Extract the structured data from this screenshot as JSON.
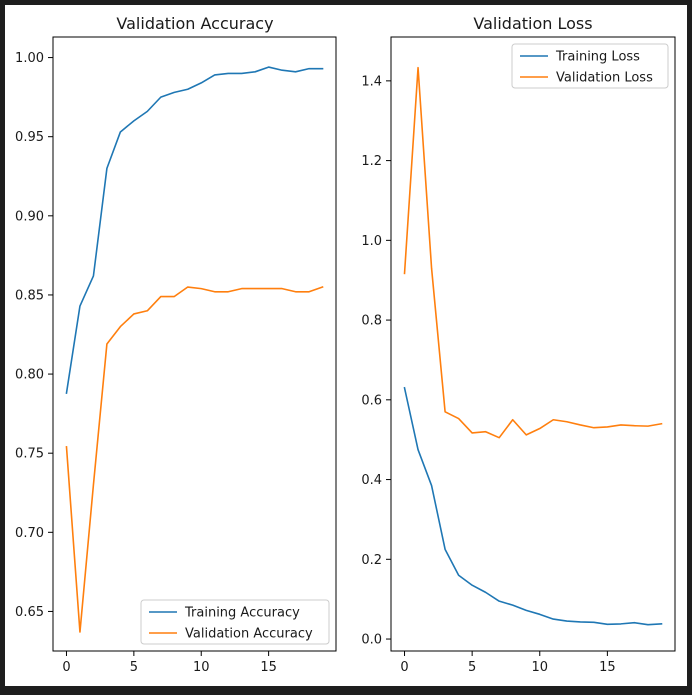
{
  "chart_data": [
    {
      "type": "line",
      "title": "Validation Accuracy",
      "xlabel": "",
      "ylabel": "",
      "xlim": [
        -1,
        20
      ],
      "ylim": [
        0.625,
        1.013
      ],
      "xticks": [
        0,
        5,
        10,
        15
      ],
      "xtick_labels": [
        "0",
        "5",
        "10",
        "15"
      ],
      "yticks": [
        0.65,
        0.7,
        0.75,
        0.8,
        0.85,
        0.9,
        0.95,
        1.0
      ],
      "ytick_labels": [
        "0.65",
        "0.70",
        "0.75",
        "0.80",
        "0.85",
        "0.90",
        "0.95",
        "1.00"
      ],
      "grid": false,
      "legend_position": "lower-right",
      "x": [
        0,
        1,
        2,
        3,
        4,
        5,
        6,
        7,
        8,
        9,
        10,
        11,
        12,
        13,
        14,
        15,
        16,
        17,
        18,
        19
      ],
      "series": [
        {
          "name": "Training Accuracy",
          "color": "#1f77b4",
          "values": [
            0.788,
            0.843,
            0.862,
            0.93,
            0.953,
            0.96,
            0.966,
            0.975,
            0.978,
            0.98,
            0.984,
            0.989,
            0.99,
            0.99,
            0.991,
            0.994,
            0.992,
            0.991,
            0.993,
            0.993
          ]
        },
        {
          "name": "Validation Accuracy",
          "color": "#ff7f0e",
          "values": [
            0.754,
            0.637,
            0.73,
            0.819,
            0.83,
            0.838,
            0.84,
            0.849,
            0.849,
            0.855,
            0.854,
            0.852,
            0.852,
            0.854,
            0.854,
            0.854,
            0.854,
            0.852,
            0.852,
            0.855
          ]
        }
      ]
    },
    {
      "type": "line",
      "title": "Validation Loss",
      "xlabel": "",
      "ylabel": "",
      "xlim": [
        -1,
        20
      ],
      "ylim": [
        -0.03,
        1.51
      ],
      "xticks": [
        0,
        5,
        10,
        15
      ],
      "xtick_labels": [
        "0",
        "5",
        "10",
        "15"
      ],
      "yticks": [
        0.0,
        0.2,
        0.4,
        0.6,
        0.8,
        1.0,
        1.2,
        1.4
      ],
      "ytick_labels": [
        "0.0",
        "0.2",
        "0.4",
        "0.6",
        "0.8",
        "1.0",
        "1.2",
        "1.4"
      ],
      "grid": false,
      "legend_position": "top-right",
      "x": [
        0,
        1,
        2,
        3,
        4,
        5,
        6,
        7,
        8,
        9,
        10,
        11,
        12,
        13,
        14,
        15,
        16,
        17,
        18,
        19
      ],
      "series": [
        {
          "name": "Training Loss",
          "color": "#1f77b4",
          "values": [
            0.63,
            0.475,
            0.385,
            0.225,
            0.16,
            0.135,
            0.117,
            0.095,
            0.085,
            0.072,
            0.062,
            0.05,
            0.045,
            0.043,
            0.042,
            0.037,
            0.038,
            0.041,
            0.036,
            0.038
          ]
        },
        {
          "name": "Validation Loss",
          "color": "#ff7f0e",
          "values": [
            0.917,
            1.433,
            0.93,
            0.57,
            0.553,
            0.517,
            0.52,
            0.505,
            0.55,
            0.512,
            0.528,
            0.55,
            0.545,
            0.537,
            0.53,
            0.532,
            0.537,
            0.535,
            0.534,
            0.54
          ]
        }
      ]
    }
  ]
}
